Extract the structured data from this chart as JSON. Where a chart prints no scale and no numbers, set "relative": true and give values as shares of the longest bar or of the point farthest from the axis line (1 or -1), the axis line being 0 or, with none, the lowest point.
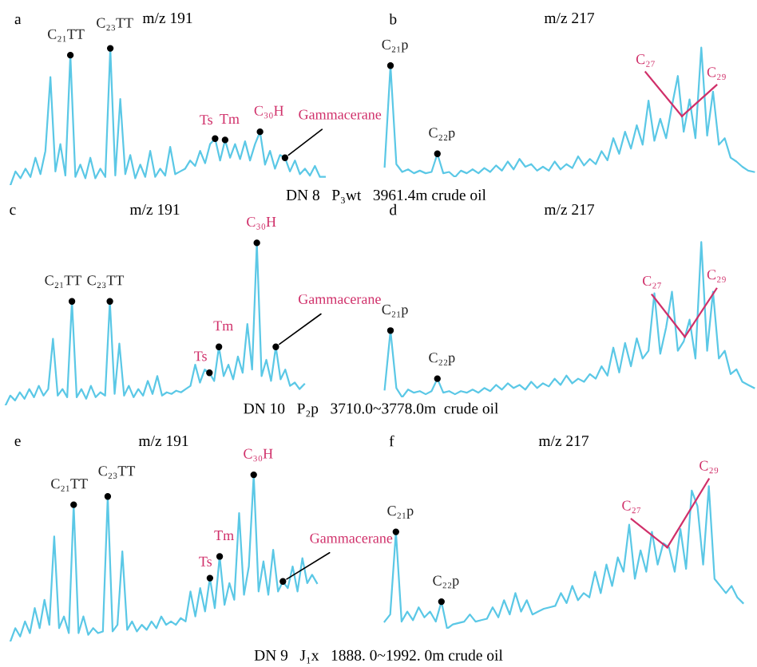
{
  "chart_data": [
    {
      "type": "line",
      "relative": true,
      "title": "m/z 191",
      "categories": [
        null,
        null,
        null,
        null,
        null,
        null,
        null,
        null,
        null,
        null,
        null,
        null,
        null,
        null,
        null,
        null,
        null,
        null,
        null,
        null,
        null,
        null,
        null,
        null,
        null,
        null,
        null,
        null,
        null,
        null,
        null,
        null,
        null,
        null,
        null,
        null,
        null,
        null,
        null,
        null,
        null,
        null,
        null,
        null,
        null,
        null,
        null,
        null,
        null,
        null,
        null,
        null,
        null,
        null,
        null,
        null,
        null,
        null,
        null,
        null,
        null,
        null,
        null,
        null
      ],
      "series": [
        {
          "color": "#5bc8e6",
          "values": [
            0,
            0.1,
            0.05,
            0.12,
            0.06,
            0.2,
            0.08,
            0.25,
            0.79,
            0.1,
            0.3,
            0.07,
            0.95,
            0.06,
            0.15,
            0.05,
            0.2,
            0.05,
            0.12,
            0.06,
            1.0,
            0.07,
            0.63,
            0.08,
            0.22,
            0.05,
            0.15,
            0.06,
            0.25,
            0.06,
            0.12,
            0.07,
            0.28,
            0.08,
            0.1,
            0.12,
            0.18,
            0.14,
            0.25,
            0.16,
            0.3,
            0.34,
            0.18,
            0.33,
            0.2,
            0.3,
            0.19,
            0.32,
            0.18,
            0.3,
            0.39,
            0.15,
            0.25,
            0.12,
            0.22,
            0.2,
            0.1,
            0.18,
            0.08,
            0.12,
            0.07,
            0.14,
            0.06,
            0.06
          ]
        }
      ],
      "annotations": [
        "a",
        {
          "text": "C₂₁TT",
          "y": 0.95
        },
        {
          "text": "C₂₃TT",
          "y": 1.0
        },
        {
          "text": "Ts",
          "y": 0.34
        },
        {
          "text": "Tm",
          "y": 0.33
        },
        {
          "text": "C₃₀H",
          "y": 0.39
        },
        "Gammacerane",
        "DN 8   P₃wt   3961.4m crude oil"
      ]
    },
    {
      "type": "line",
      "relative": true,
      "title": "m/z 217",
      "categories": [
        null,
        null,
        null,
        null,
        null,
        null,
        null,
        null,
        null,
        null,
        null,
        null,
        null,
        null,
        null,
        null,
        null,
        null,
        null,
        null,
        null,
        null,
        null,
        null,
        null,
        null,
        null,
        null,
        null,
        null,
        null,
        null,
        null,
        null,
        null,
        null,
        null,
        null,
        null,
        null,
        null,
        null,
        null,
        null,
        null,
        null,
        null,
        null,
        null,
        null,
        null,
        null,
        null,
        null,
        null,
        null,
        null,
        null,
        null,
        null,
        null,
        null,
        null,
        null
      ],
      "series": [
        {
          "color": "#5bc8e6",
          "values": [
            0.08,
            0.86,
            0.1,
            0.04,
            0.06,
            0.03,
            0.05,
            0.03,
            0.04,
            0.18,
            0.03,
            0.04,
            0,
            0.05,
            0.03,
            0.06,
            0.03,
            0.07,
            0.04,
            0.09,
            0.05,
            0.12,
            0.06,
            0.14,
            0.08,
            0.1,
            0.05,
            0.08,
            0.05,
            0.12,
            0.06,
            0.1,
            0.07,
            0.16,
            0.09,
            0.14,
            0.1,
            0.2,
            0.13,
            0.3,
            0.18,
            0.35,
            0.22,
            0.4,
            0.25,
            0.59,
            0.28,
            0.45,
            0.3,
            0.55,
            0.78,
            0.35,
            0.6,
            0.3,
            1.0,
            0.32,
            0.66,
            0.25,
            0.3,
            0.15,
            0.12,
            0.08,
            0.05,
            0.04
          ]
        }
      ],
      "annotations": [
        "b",
        {
          "text": "C₂₁p",
          "y": 0.86
        },
        {
          "text": "C₂₂p",
          "y": 0.18
        },
        "C₂₇",
        "C₂₉"
      ]
    },
    {
      "type": "line",
      "relative": true,
      "title": "m/z 191",
      "categories": [
        null,
        null,
        null,
        null,
        null,
        null,
        null,
        null,
        null,
        null,
        null,
        null,
        null,
        null,
        null,
        null,
        null,
        null,
        null,
        null,
        null,
        null,
        null,
        null,
        null,
        null,
        null,
        null,
        null,
        null,
        null,
        null,
        null,
        null,
        null,
        null,
        null,
        null,
        null,
        null,
        null,
        null,
        null,
        null,
        null,
        null,
        null,
        null,
        null,
        null,
        null,
        null,
        null,
        null,
        null,
        null,
        null,
        null,
        null,
        null,
        null,
        null,
        null,
        null
      ],
      "series": [
        {
          "color": "#5bc8e6",
          "values": [
            0,
            0.06,
            0.03,
            0.08,
            0.04,
            0.1,
            0.05,
            0.12,
            0.06,
            0.1,
            0.41,
            0.06,
            0.1,
            0.05,
            0.64,
            0.05,
            0.1,
            0.04,
            0.12,
            0.05,
            0.08,
            0.06,
            0.64,
            0.07,
            0.38,
            0.06,
            0.12,
            0.05,
            0.1,
            0.06,
            0.15,
            0.07,
            0.18,
            0.06,
            0.08,
            0.07,
            0.09,
            0.08,
            0.1,
            0.12,
            0.25,
            0.14,
            0.22,
            0.2,
            0.15,
            0.36,
            0.18,
            0.25,
            0.16,
            0.3,
            0.2,
            0.5,
            0.22,
            1.0,
            0.18,
            0.28,
            0.15,
            0.36,
            0.16,
            0.22,
            0.12,
            0.14,
            0.1,
            0.13
          ]
        }
      ],
      "annotations": [
        "c",
        {
          "text": "C₂₁TT",
          "y": 0.64
        },
        {
          "text": "C₂₃TT",
          "y": 0.64
        },
        {
          "text": "Ts",
          "y": 0.2
        },
        {
          "text": "Tm",
          "y": 0.36
        },
        {
          "text": "C₃₀H",
          "y": 1.0
        },
        "Gammacerane",
        "DN 10   P₂p   3710.0~3778.0m  crude oil"
      ]
    },
    {
      "type": "line",
      "relative": true,
      "title": "m/z 217",
      "categories": [
        null,
        null,
        null,
        null,
        null,
        null,
        null,
        null,
        null,
        null,
        null,
        null,
        null,
        null,
        null,
        null,
        null,
        null,
        null,
        null,
        null,
        null,
        null,
        null,
        null,
        null,
        null,
        null,
        null,
        null,
        null,
        null,
        null,
        null,
        null,
        null,
        null,
        null,
        null,
        null,
        null,
        null,
        null,
        null,
        null,
        null,
        null,
        null,
        null,
        null,
        null,
        null,
        null,
        null,
        null,
        null,
        null,
        null,
        null,
        null,
        null,
        null,
        null,
        null
      ],
      "series": [
        {
          "color": "#5bc8e6",
          "values": [
            0.05,
            0.43,
            0.06,
            0,
            0.05,
            0.03,
            0.04,
            0.02,
            0.04,
            0.12,
            0.03,
            0.04,
            0.02,
            0.04,
            0.03,
            0.05,
            0.03,
            0.06,
            0.04,
            0.08,
            0.05,
            0.09,
            0.06,
            0.08,
            0.05,
            0.1,
            0.06,
            0.09,
            0.07,
            0.12,
            0.08,
            0.14,
            0.09,
            0.12,
            0.1,
            0.15,
            0.12,
            0.2,
            0.14,
            0.32,
            0.16,
            0.35,
            0.2,
            0.38,
            0.25,
            0.3,
            0.67,
            0.28,
            0.45,
            0.68,
            0.3,
            0.36,
            0.5,
            0.25,
            1.0,
            0.3,
            0.68,
            0.25,
            0.3,
            0.15,
            0.18,
            0.1,
            0.08,
            0.06
          ]
        }
      ],
      "annotations": [
        "d",
        {
          "text": "C₂₁p",
          "y": 0.43
        },
        {
          "text": "C₂₂p",
          "y": 0.12
        },
        "C₂₇",
        "C₂₉"
      ]
    },
    {
      "type": "line",
      "relative": true,
      "title": "m/z 191",
      "categories": [
        null,
        null,
        null,
        null,
        null,
        null,
        null,
        null,
        null,
        null,
        null,
        null,
        null,
        null,
        null,
        null,
        null,
        null,
        null,
        null,
        null,
        null,
        null,
        null,
        null,
        null,
        null,
        null,
        null,
        null,
        null,
        null,
        null,
        null,
        null,
        null,
        null,
        null,
        null,
        null,
        null,
        null,
        null,
        null,
        null,
        null,
        null,
        null,
        null,
        null,
        null,
        null,
        null,
        null,
        null,
        null,
        null,
        null,
        null,
        null,
        null,
        null,
        null,
        null
      ],
      "series": [
        {
          "color": "#5bc8e6",
          "values": [
            0,
            0.08,
            0.03,
            0.12,
            0.05,
            0.2,
            0.08,
            0.25,
            0.1,
            0.63,
            0.08,
            0.15,
            0.05,
            0.82,
            0.05,
            0.15,
            0.04,
            0.08,
            0.05,
            0.06,
            0.87,
            0.06,
            0.1,
            0.54,
            0.07,
            0.12,
            0.06,
            0.1,
            0.07,
            0.12,
            0.08,
            0.15,
            0.1,
            0.12,
            0.1,
            0.14,
            0.12,
            0.3,
            0.15,
            0.32,
            0.18,
            0.38,
            0.2,
            0.51,
            0.22,
            0.35,
            0.25,
            0.77,
            0.28,
            0.45,
            1.0,
            0.3,
            0.48,
            0.28,
            0.55,
            0.3,
            0.36,
            0.32,
            0.45,
            0.3,
            0.5,
            0.35,
            0.4,
            0.35
          ]
        }
      ],
      "annotations": [
        "e",
        {
          "text": "C₂₁TT",
          "y": 0.82
        },
        {
          "text": "C₂₃TT",
          "y": 0.87
        },
        {
          "text": "Ts",
          "y": 0.38
        },
        {
          "text": "Tm",
          "y": 0.51
        },
        {
          "text": "C₃₀H",
          "y": 1.0
        },
        "Gammacerane",
        "DN 9   J₁x   1888. 0~1992. 0m crude oil"
      ]
    },
    {
      "type": "line",
      "relative": true,
      "title": "m/z 217",
      "categories": [
        null,
        null,
        null,
        null,
        null,
        null,
        null,
        null,
        null,
        null,
        null,
        null,
        null,
        null,
        null,
        null,
        null,
        null,
        null,
        null,
        null,
        null,
        null,
        null,
        null,
        null,
        null,
        null,
        null,
        null,
        null,
        null,
        null,
        null,
        null,
        null,
        null,
        null,
        null,
        null,
        null,
        null,
        null,
        null,
        null,
        null,
        null,
        null,
        null,
        null,
        null,
        null,
        null,
        null,
        null,
        null,
        null,
        null,
        null,
        null,
        null,
        null,
        null,
        null
      ],
      "series": [
        {
          "color": "#5bc8e6",
          "values": [
            0.05,
            0.1,
            0.68,
            0.05,
            0.12,
            0.06,
            0.15,
            0.08,
            0.12,
            0.05,
            0.19,
            0,
            0.03,
            0.04,
            0.05,
            0.1,
            0.05,
            0.06,
            0.07,
            0.15,
            0.08,
            0.2,
            0.1,
            0.25,
            0.12,
            0.2,
            0.1,
            0.12,
            0.14,
            0.15,
            0.16,
            0.25,
            0.18,
            0.3,
            0.2,
            0.25,
            0.22,
            0.4,
            0.25,
            0.45,
            0.3,
            0.5,
            0.4,
            0.73,
            0.35,
            0.55,
            0.4,
            0.68,
            0.45,
            0.6,
            0.57,
            0.4,
            0.7,
            0.42,
            0.97,
            0.86,
            0.45,
            1.0,
            0.35,
            0.3,
            0.25,
            0.3,
            0.22,
            0.18
          ]
        }
      ],
      "annotations": [
        "f",
        {
          "text": "C₂₁p",
          "y": 0.68
        },
        {
          "text": "C₂₂p",
          "y": 0.19
        },
        "C₂₇",
        "C₂₉"
      ]
    }
  ]
}
